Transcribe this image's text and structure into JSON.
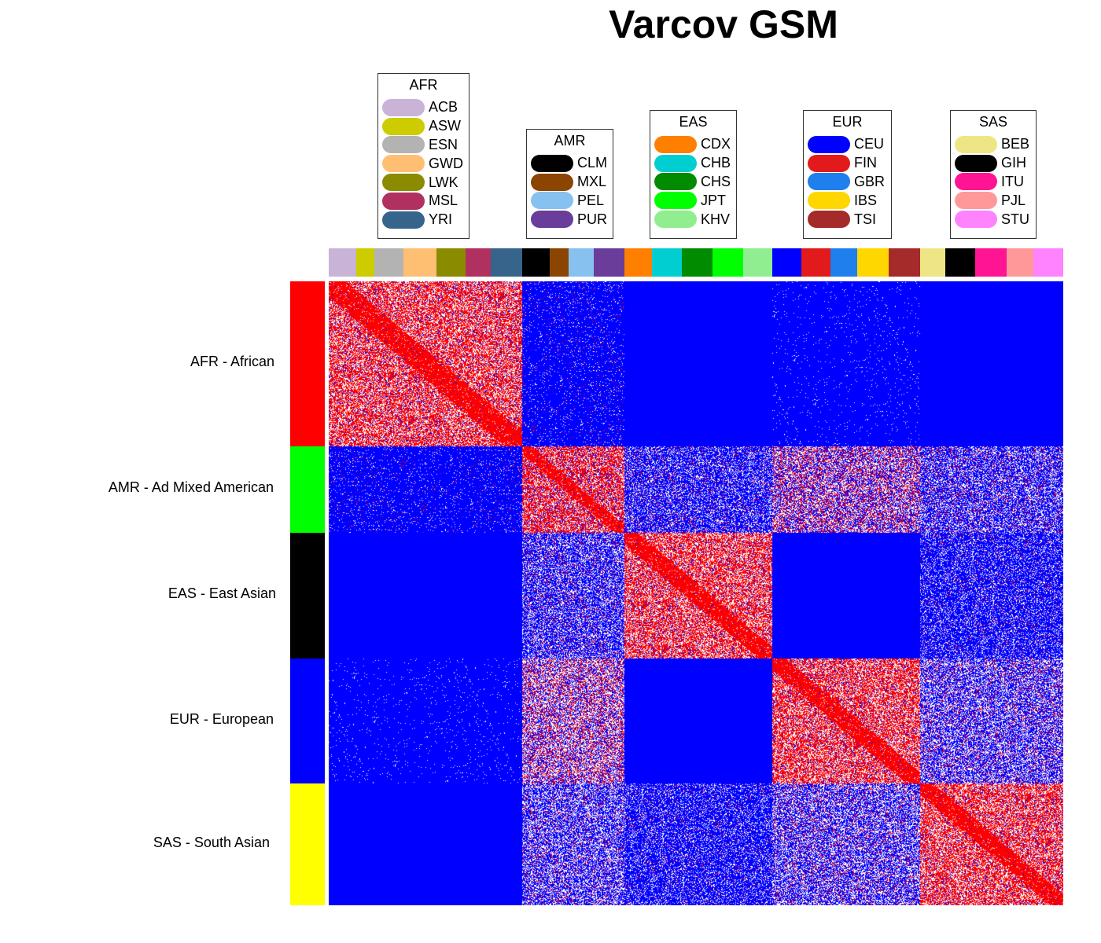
{
  "chart_data": {
    "type": "heatmap",
    "title": "Varcov GSM",
    "colors": {
      "high": "#ff0000",
      "mid": "#ffffff",
      "low": "#0000ff"
    },
    "super_populations": [
      {
        "code": "AFR",
        "label": "AFR - African",
        "side_color": "#ff0000",
        "subpops": [
          {
            "name": "ACB",
            "color": "#c9b3d6"
          },
          {
            "name": "ASW",
            "color": "#cccc00"
          },
          {
            "name": "ESN",
            "color": "#b3b3b3"
          },
          {
            "name": "GWD",
            "color": "#ffbf73"
          },
          {
            "name": "LWK",
            "color": "#8b8b00"
          },
          {
            "name": "MSL",
            "color": "#b03060"
          },
          {
            "name": "YRI",
            "color": "#36648b"
          }
        ]
      },
      {
        "code": "AMR",
        "label": "AMR - Ad Mixed American",
        "side_color": "#00ff00",
        "subpops": [
          {
            "name": "CLM",
            "color": "#000000"
          },
          {
            "name": "MXL",
            "color": "#8b4500"
          },
          {
            "name": "PEL",
            "color": "#87c1f0"
          },
          {
            "name": "PUR",
            "color": "#6a3d9a"
          }
        ]
      },
      {
        "code": "EAS",
        "label": "EAS - East Asian",
        "side_color": "#000000",
        "subpops": [
          {
            "name": "CDX",
            "color": "#ff7f00"
          },
          {
            "name": "CHB",
            "color": "#00ced1"
          },
          {
            "name": "CHS",
            "color": "#008b00"
          },
          {
            "name": "JPT",
            "color": "#00ff00"
          },
          {
            "name": "KHV",
            "color": "#90ee90"
          }
        ]
      },
      {
        "code": "EUR",
        "label": "EUR - European",
        "side_color": "#0000ff",
        "subpops": [
          {
            "name": "CEU",
            "color": "#0000ff"
          },
          {
            "name": "FIN",
            "color": "#e31a1c"
          },
          {
            "name": "GBR",
            "color": "#1e7fed"
          },
          {
            "name": "IBS",
            "color": "#ffd700"
          },
          {
            "name": "TSI",
            "color": "#a52a2a"
          }
        ]
      },
      {
        "code": "SAS",
        "label": "SAS - South Asian",
        "side_color": "#ffff00",
        "subpops": [
          {
            "name": "BEB",
            "color": "#eee685"
          },
          {
            "name": "GIH",
            "color": "#000000"
          },
          {
            "name": "ITU",
            "color": "#ff1493"
          },
          {
            "name": "PJL",
            "color": "#ff9999"
          },
          {
            "name": "STU",
            "color": "#ff82ff"
          }
        ]
      }
    ]
  }
}
